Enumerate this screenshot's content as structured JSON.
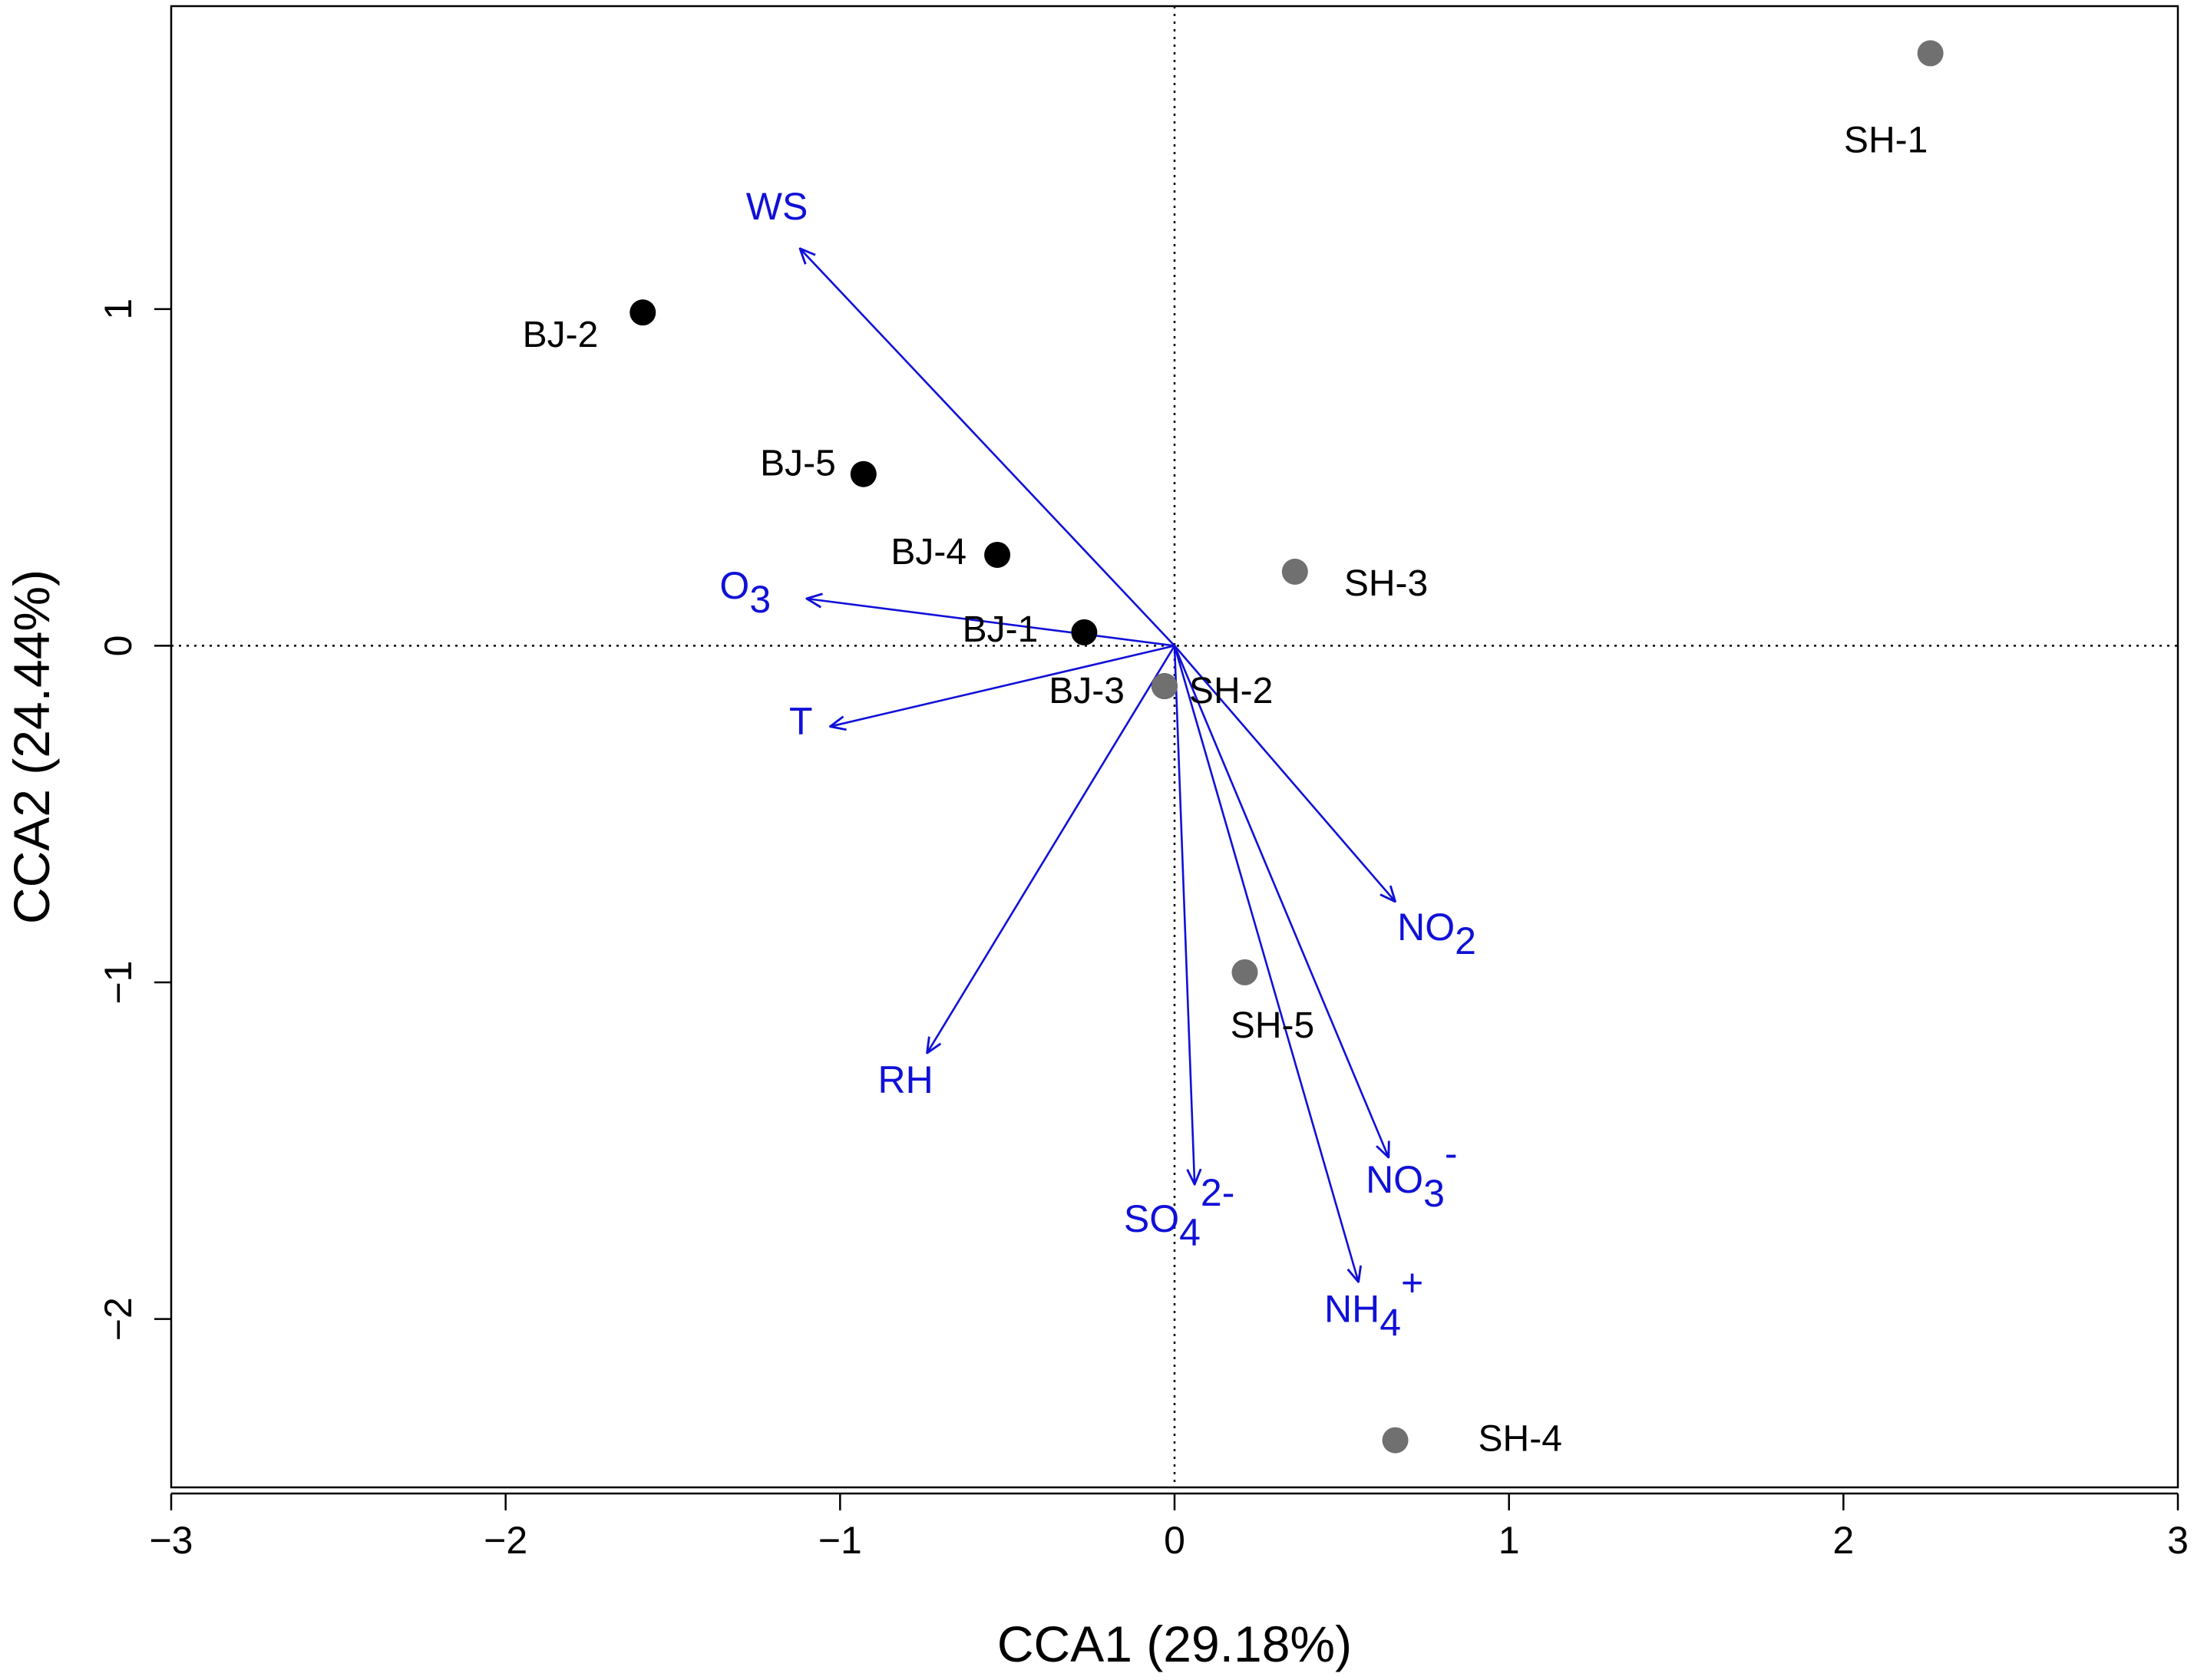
{
  "chart_data": {
    "type": "scatter",
    "title": "",
    "xlabel": "CCA1 (29.18%)",
    "ylabel": "CCA2 (24.44%)",
    "xlim": [
      -3,
      3
    ],
    "ylim": [
      -2.5,
      1.9
    ],
    "x_ticks": [
      -3,
      -2,
      -1,
      0,
      1,
      2,
      3
    ],
    "x_tick_labels": [
      "−3",
      "−2",
      "−1",
      "0",
      "1",
      "2",
      "3"
    ],
    "y_ticks": [
      -2,
      -1,
      0,
      1
    ],
    "y_tick_labels": [
      "−2",
      "−1",
      "0",
      "1"
    ],
    "reference_lines": {
      "x": 0,
      "y": 0,
      "style": "dotted"
    },
    "site_series": [
      {
        "name": "BJ",
        "color": "#000000",
        "points": [
          {
            "label": "BJ-1",
            "x": -0.27,
            "y": 0.04
          },
          {
            "label": "BJ-2",
            "x": -1.59,
            "y": 0.99
          },
          {
            "label": "BJ-3",
            "x": -0.03,
            "y": -0.12
          },
          {
            "label": "BJ-4",
            "x": -0.53,
            "y": 0.27
          },
          {
            "label": "BJ-5",
            "x": -0.93,
            "y": 0.51
          }
        ]
      },
      {
        "name": "SH",
        "color": "#707070",
        "points": [
          {
            "label": "SH-1",
            "x": 2.26,
            "y": 1.76
          },
          {
            "label": "SH-2",
            "x": -0.03,
            "y": -0.12
          },
          {
            "label": "SH-3",
            "x": 0.36,
            "y": 0.22
          },
          {
            "label": "SH-4",
            "x": 0.66,
            "y": -2.36
          },
          {
            "label": "SH-5",
            "x": 0.21,
            "y": -0.97
          }
        ]
      }
    ],
    "vectors": {
      "color": "#1010d8",
      "items": [
        {
          "base": "WS",
          "sub": "",
          "sup": "",
          "x": -1.12,
          "y": 1.18
        },
        {
          "base": "O",
          "sub": "3",
          "sup": "",
          "x": -1.1,
          "y": 0.14
        },
        {
          "base": "T",
          "sub": "",
          "sup": "",
          "x": -1.03,
          "y": -0.24
        },
        {
          "base": "RH",
          "sub": "",
          "sup": "",
          "x": -0.74,
          "y": -1.21
        },
        {
          "base": "NO",
          "sub": "2",
          "sup": "",
          "x": 0.66,
          "y": -0.76
        },
        {
          "base": "SO",
          "sub": "4",
          "sup": "2-",
          "x": 0.06,
          "y": -1.6
        },
        {
          "base": "NO",
          "sub": "3",
          "sup": "-",
          "x": 0.64,
          "y": -1.52
        },
        {
          "base": "NH",
          "sub": "4",
          "sup": "+",
          "x": 0.55,
          "y": -1.89
        }
      ]
    }
  }
}
